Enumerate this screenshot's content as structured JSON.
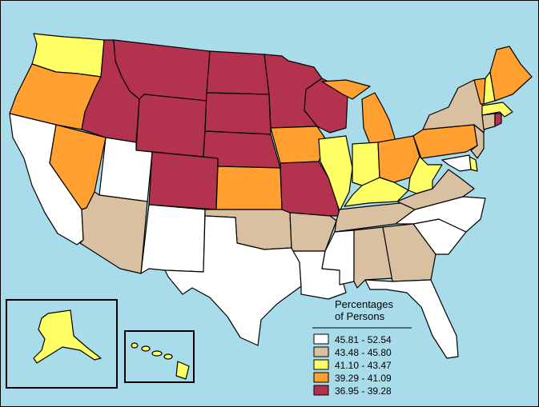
{
  "legend": {
    "title_line1": "Percentages",
    "title_line2": "of Persons",
    "classes": [
      {
        "label": "45.81 - 52.54",
        "color": "#ffffff"
      },
      {
        "label": "43.48 - 45.80",
        "color": "#d9c0a0"
      },
      {
        "label": "41.10 - 43.47",
        "color": "#ffff66"
      },
      {
        "label": "39.29 - 41.09",
        "color": "#ffa030"
      },
      {
        "label": "36.95 - 39.28",
        "color": "#b3334e"
      }
    ]
  },
  "colors": {
    "background": "#a8dcea",
    "border": "#000000"
  },
  "states": {
    "WA": 3,
    "OR": 4,
    "CA": 1,
    "NV": 4,
    "ID": 5,
    "MT": 5,
    "WY": 5,
    "UT": 1,
    "AZ": 2,
    "CO": 5,
    "NM": 1,
    "ND": 5,
    "SD": 5,
    "NE": 5,
    "KS": 4,
    "OK": 2,
    "TX": 1,
    "MN": 5,
    "IA": 4,
    "MO": 5,
    "AR": 2,
    "LA": 1,
    "WI": 5,
    "IL": 3,
    "MI": 4,
    "IN": 3,
    "OH": 4,
    "KY": 3,
    "TN": 2,
    "MS": 1,
    "AL": 2,
    "GA": 2,
    "FL": 1,
    "SC": 1,
    "NC": 1,
    "VA": 2,
    "WV": 3,
    "PA": 4,
    "NY": 2,
    "ME": 4,
    "VT": 4,
    "NH": 3,
    "MA": 3,
    "CT": 2,
    "RI": 5,
    "NJ": 2,
    "DE": 3,
    "MD": 1,
    "AK": 3,
    "HI": 3
  }
}
